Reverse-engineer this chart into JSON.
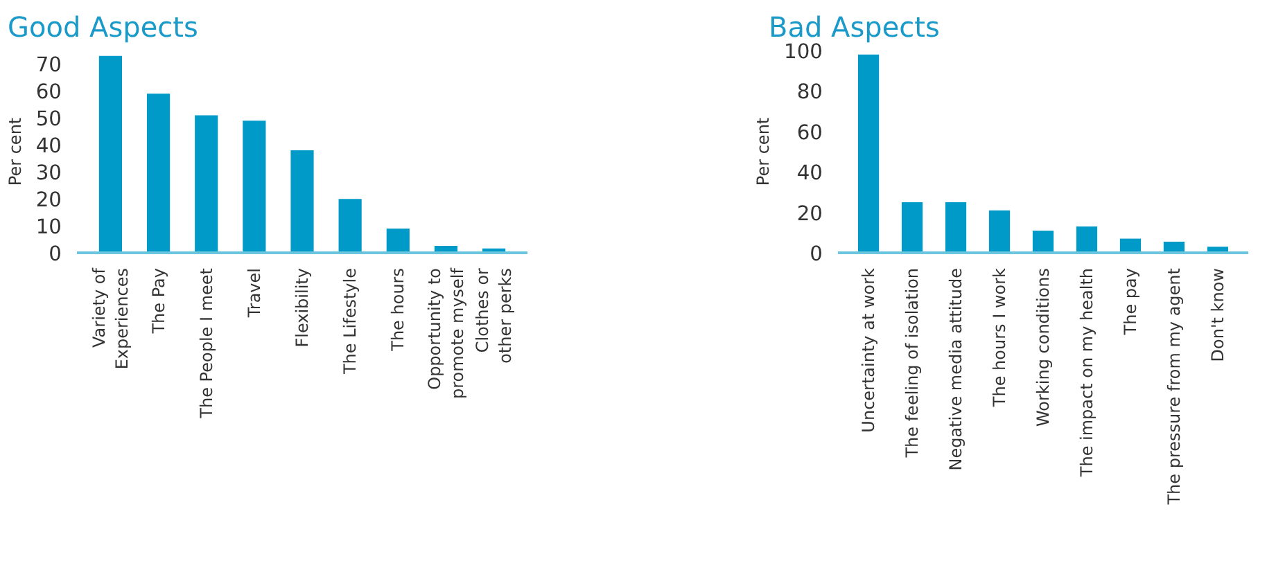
{
  "chart_data": [
    {
      "type": "bar",
      "title": "Good Aspects",
      "ylabel": "Per cent",
      "categories": [
        "Variety of\nExperiences",
        "The Pay",
        "The People I meet",
        "Travel",
        "Flexibility",
        "The Lifestyle",
        "The hours",
        "Opportunity to\npromote myself",
        "Clothes or\nother perks"
      ],
      "values": [
        73,
        59,
        51,
        49,
        38,
        20,
        9,
        2.6,
        1.6
      ],
      "color": "#009ac9",
      "ylim": [
        0,
        75
      ],
      "yticks": [
        0,
        10,
        20,
        30,
        40,
        50,
        60,
        70
      ],
      "grid": false
    },
    {
      "type": "bar",
      "title": "Bad Aspects",
      "ylabel": "Per cent",
      "categories": [
        "Uncertainty at work",
        "The feeling of isolation",
        "Negative media attitude",
        "The hours I work",
        "Working conditions",
        "The impact on my health",
        "The pay",
        "The pressure from my agent",
        "Don't know"
      ],
      "values": [
        98,
        25,
        25,
        21,
        11,
        13,
        7,
        5.5,
        3
      ],
      "color": "#009ac9",
      "ylim": [
        0,
        100
      ],
      "yticks": [
        0,
        20,
        40,
        60,
        80,
        100
      ],
      "grid": false
    }
  ]
}
